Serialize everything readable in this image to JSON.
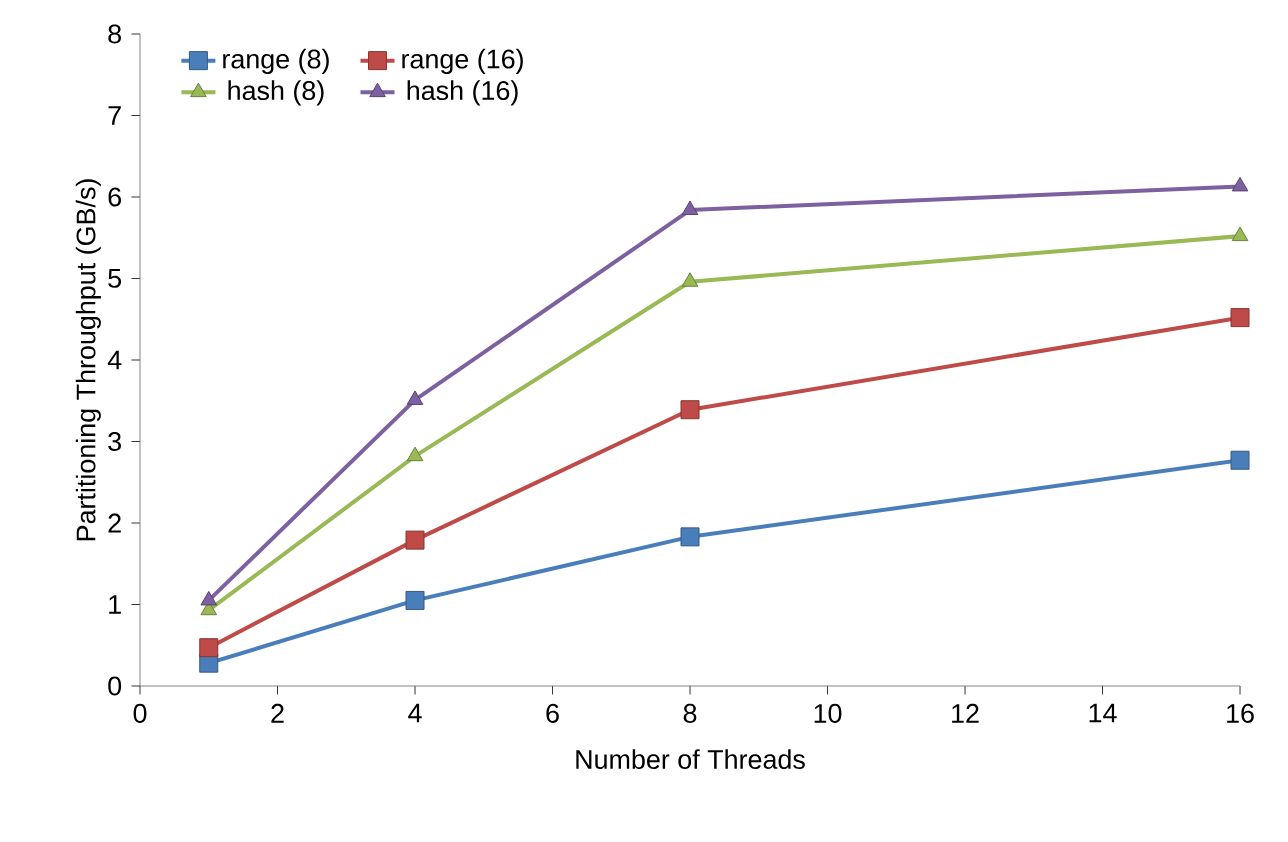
{
  "chart_data": {
    "type": "line",
    "xlabel": "Number of Threads",
    "ylabel": "Partitioning Throughput (GB/s)",
    "x": [
      1,
      4,
      8,
      16
    ],
    "xlim": [
      0,
      16
    ],
    "xticks": [
      0,
      2,
      4,
      6,
      8,
      10,
      12,
      14,
      16
    ],
    "ylim": [
      0,
      8
    ],
    "yticks": [
      0,
      1,
      2,
      3,
      4,
      5,
      6,
      7,
      8
    ],
    "grid": false,
    "legend": "top left",
    "line_style": "solid",
    "series": [
      {
        "name": "range (8)",
        "color": "#4a7ebb",
        "marker": "square",
        "values": [
          0.28,
          1.05,
          1.83,
          2.77
        ]
      },
      {
        "name": "range (16)",
        "color": "#be4b48",
        "marker": "square",
        "values": [
          0.47,
          1.79,
          3.39,
          4.52
        ]
      },
      {
        "name": "hash (8)",
        "color": "#98b954",
        "marker": "triangle",
        "values": [
          0.93,
          2.82,
          4.96,
          5.52
        ]
      },
      {
        "name": "hash (16)",
        "color": "#7d60a0",
        "marker": "triangle",
        "values": [
          1.05,
          3.51,
          5.84,
          6.13
        ]
      }
    ]
  }
}
